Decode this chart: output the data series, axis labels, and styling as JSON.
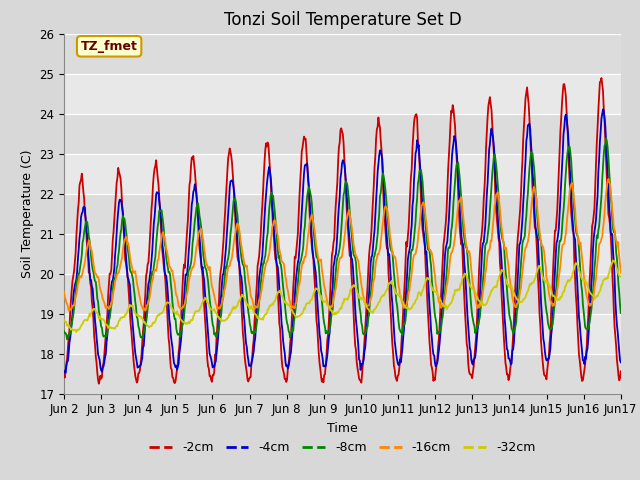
{
  "title": "Tonzi Soil Temperature Set D",
  "xlabel": "Time",
  "ylabel": "Soil Temperature (C)",
  "annotation": "TZ_fmet",
  "ylim": [
    17.0,
    26.0
  ],
  "yticks": [
    17.0,
    18.0,
    19.0,
    20.0,
    21.0,
    22.0,
    23.0,
    24.0,
    25.0,
    26.0
  ],
  "fig_bg": "#d8d8d8",
  "plot_bg": "#e8e8e8",
  "band_colors": [
    "#dcdcdc",
    "#e8e8e8"
  ],
  "line_colors": {
    "-2cm": "#cc0000",
    "-4cm": "#0000cc",
    "-8cm": "#008800",
    "-16cm": "#ff8800",
    "-32cm": "#cccc00"
  },
  "line_width": 1.3,
  "start_day": 2,
  "end_day": 17,
  "title_fontsize": 12,
  "label_fontsize": 9,
  "tick_fontsize": 8.5
}
